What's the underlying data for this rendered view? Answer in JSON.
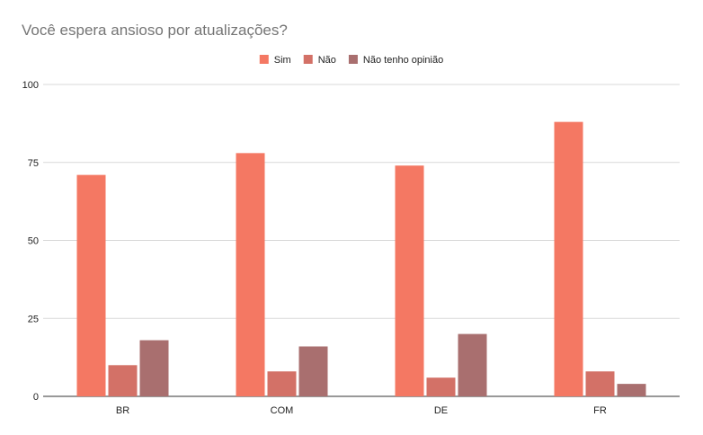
{
  "chart_data": {
    "type": "bar",
    "title": "Você espera ansioso por atualizações?",
    "xlabel": "",
    "ylabel": "",
    "categories": [
      "BR",
      "COM",
      "DE",
      "FR"
    ],
    "series": [
      {
        "name": "Sim",
        "color": "#f47863",
        "values": [
          71,
          78,
          74,
          88
        ]
      },
      {
        "name": "Não",
        "color": "#d37167",
        "values": [
          10,
          8,
          6,
          8
        ]
      },
      {
        "name": "Não tenho opinião",
        "color": "#a96f6f",
        "values": [
          18,
          16,
          20,
          4
        ]
      }
    ],
    "ylim": [
      0,
      100
    ],
    "yticks": [
      "0",
      "25",
      "50",
      "75",
      "100"
    ],
    "grid": true,
    "legend": "top-center"
  }
}
